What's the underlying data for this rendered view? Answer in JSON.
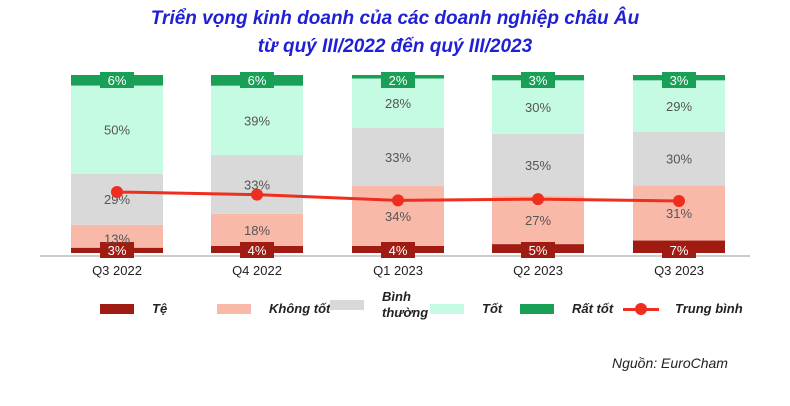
{
  "title_line1": "Triển vọng kinh doanh của các doanh nghiệp châu Âu",
  "title_line2": "từ  quý III/2022 đến quý III/2023",
  "source": "Nguồn: EuroCham",
  "colors": {
    "te": "#a01c12",
    "khong_tot": "#f9b9a9",
    "binh_thuong": "#d9d9d9",
    "tot": "#c6fbe3",
    "rat_tot": "#1a9f57",
    "trung_binh": "#ee2e1e",
    "title": "#1f1fd6"
  },
  "legend": [
    {
      "label": "Tệ",
      "color": "#a01c12",
      "kind": "bar"
    },
    {
      "label": "Không tốt",
      "color": "#f9b9a9",
      "kind": "bar"
    },
    {
      "label": "Bình\nthường",
      "color": "#d9d9d9",
      "kind": "bar"
    },
    {
      "label": "Tốt",
      "color": "#c6fbe3",
      "kind": "bar"
    },
    {
      "label": "Rất tốt",
      "color": "#1a9f57",
      "kind": "bar"
    },
    {
      "label": "Trung bình",
      "color": "#ee2e1e",
      "kind": "line"
    }
  ],
  "chart_data": {
    "type": "bar",
    "stacked": true,
    "title": "Triển vọng kinh doanh của các doanh nghiệp châu Âu từ  quý III/2022 đến quý III/2023",
    "categories": [
      "Q3 2022",
      "Q4 2022",
      "Q1 2023",
      "Q2 2023",
      "Q3 2023"
    ],
    "series": [
      {
        "name": "Tệ",
        "values": [
          3,
          4,
          4,
          5,
          7
        ],
        "labels": [
          "3%",
          "4%",
          "4%",
          "5%",
          "7%"
        ]
      },
      {
        "name": "Không tốt",
        "values": [
          13,
          18,
          34,
          27,
          31
        ],
        "labels": [
          "13%",
          "18%",
          "34%",
          "27%",
          "31%"
        ]
      },
      {
        "name": "Bình thường",
        "values": [
          29,
          33,
          33,
          35,
          30
        ],
        "labels": [
          "29%",
          "33%",
          "33%",
          "35%",
          "30%"
        ]
      },
      {
        "name": "Tốt",
        "values": [
          50,
          39,
          28,
          30,
          29
        ],
        "labels": [
          "50%",
          "39%",
          "28%",
          "30%",
          "29%"
        ]
      },
      {
        "name": "Rất tốt",
        "values": [
          6,
          6,
          2,
          3,
          3
        ],
        "labels": [
          "6%",
          "6%",
          "2%",
          "3%",
          "3%"
        ]
      }
    ],
    "line": {
      "name": "Trung bình",
      "values": [
        3.2,
        3.16,
        3.07,
        3.09,
        3.06
      ]
    },
    "ylim": [
      0,
      100
    ],
    "grid": false,
    "legend_position": "bottom"
  }
}
